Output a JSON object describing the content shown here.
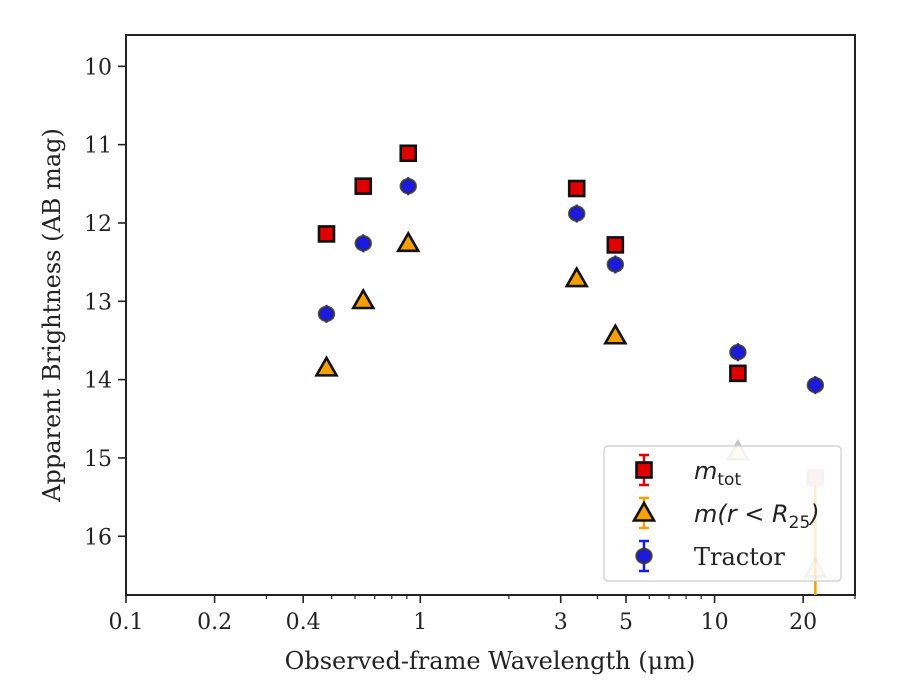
{
  "chart_data": {
    "type": "scatter",
    "xscale": "log",
    "yaxis_inverted": true,
    "xlim": [
      0.1,
      30
    ],
    "ylim": [
      16.75,
      9.6
    ],
    "xlabel": "Observed-frame Wavelength (μm)",
    "ylabel": "Apparent Brightness (AB mag)",
    "xticks": [
      {
        "value": 0.1,
        "label": "0.1"
      },
      {
        "value": 0.2,
        "label": "0.2"
      },
      {
        "value": 0.4,
        "label": "0.4"
      },
      {
        "value": 1,
        "label": "1"
      },
      {
        "value": 3,
        "label": "3"
      },
      {
        "value": 5,
        "label": "5"
      },
      {
        "value": 10,
        "label": "10"
      },
      {
        "value": 20,
        "label": "20"
      }
    ],
    "xminor": [
      0.3,
      0.5,
      0.6,
      0.7,
      0.8,
      0.9,
      2,
      4,
      6,
      7,
      8,
      9,
      30
    ],
    "yticks": [
      {
        "value": 10,
        "label": "10"
      },
      {
        "value": 11,
        "label": "11"
      },
      {
        "value": 12,
        "label": "12"
      },
      {
        "value": 13,
        "label": "13"
      },
      {
        "value": 14,
        "label": "14"
      },
      {
        "value": 15,
        "label": "15"
      },
      {
        "value": 16,
        "label": "16"
      }
    ],
    "grid": false,
    "legend_position": "lower-right",
    "series": [
      {
        "name": "m_tot",
        "legend_text": "m",
        "legend_sub": "tot",
        "marker": "square",
        "color": "#e00000",
        "edge": "#111111",
        "x": [
          0.48,
          0.64,
          0.91,
          3.4,
          4.6,
          12.0,
          22.0
        ],
        "y": [
          12.14,
          11.53,
          11.11,
          11.56,
          12.28,
          13.92,
          15.25
        ],
        "faded": [
          false,
          false,
          false,
          false,
          false,
          false,
          true
        ]
      },
      {
        "name": "m(r < R25)",
        "legend_text": "m(r < R",
        "legend_sub": "25",
        "legend_end": ")",
        "marker": "triangle",
        "color": "#f5a000",
        "edge": "#111111",
        "x": [
          0.48,
          0.64,
          0.91,
          3.4,
          4.6,
          12.0,
          22.0
        ],
        "y": [
          13.85,
          12.99,
          12.26,
          12.71,
          13.44,
          14.92,
          16.42
        ],
        "faded": [
          false,
          false,
          false,
          false,
          false,
          true,
          true
        ]
      },
      {
        "name": "Tractor",
        "legend_text": "Tractor",
        "marker": "circle",
        "color": "#1a1ae0",
        "edge": "#333333",
        "x": [
          0.48,
          0.64,
          0.91,
          3.4,
          4.6,
          12.0,
          22.0
        ],
        "y": [
          13.16,
          12.26,
          11.53,
          11.88,
          12.53,
          13.65,
          14.07
        ],
        "faded": [
          false,
          false,
          false,
          false,
          false,
          false,
          false
        ]
      }
    ]
  }
}
